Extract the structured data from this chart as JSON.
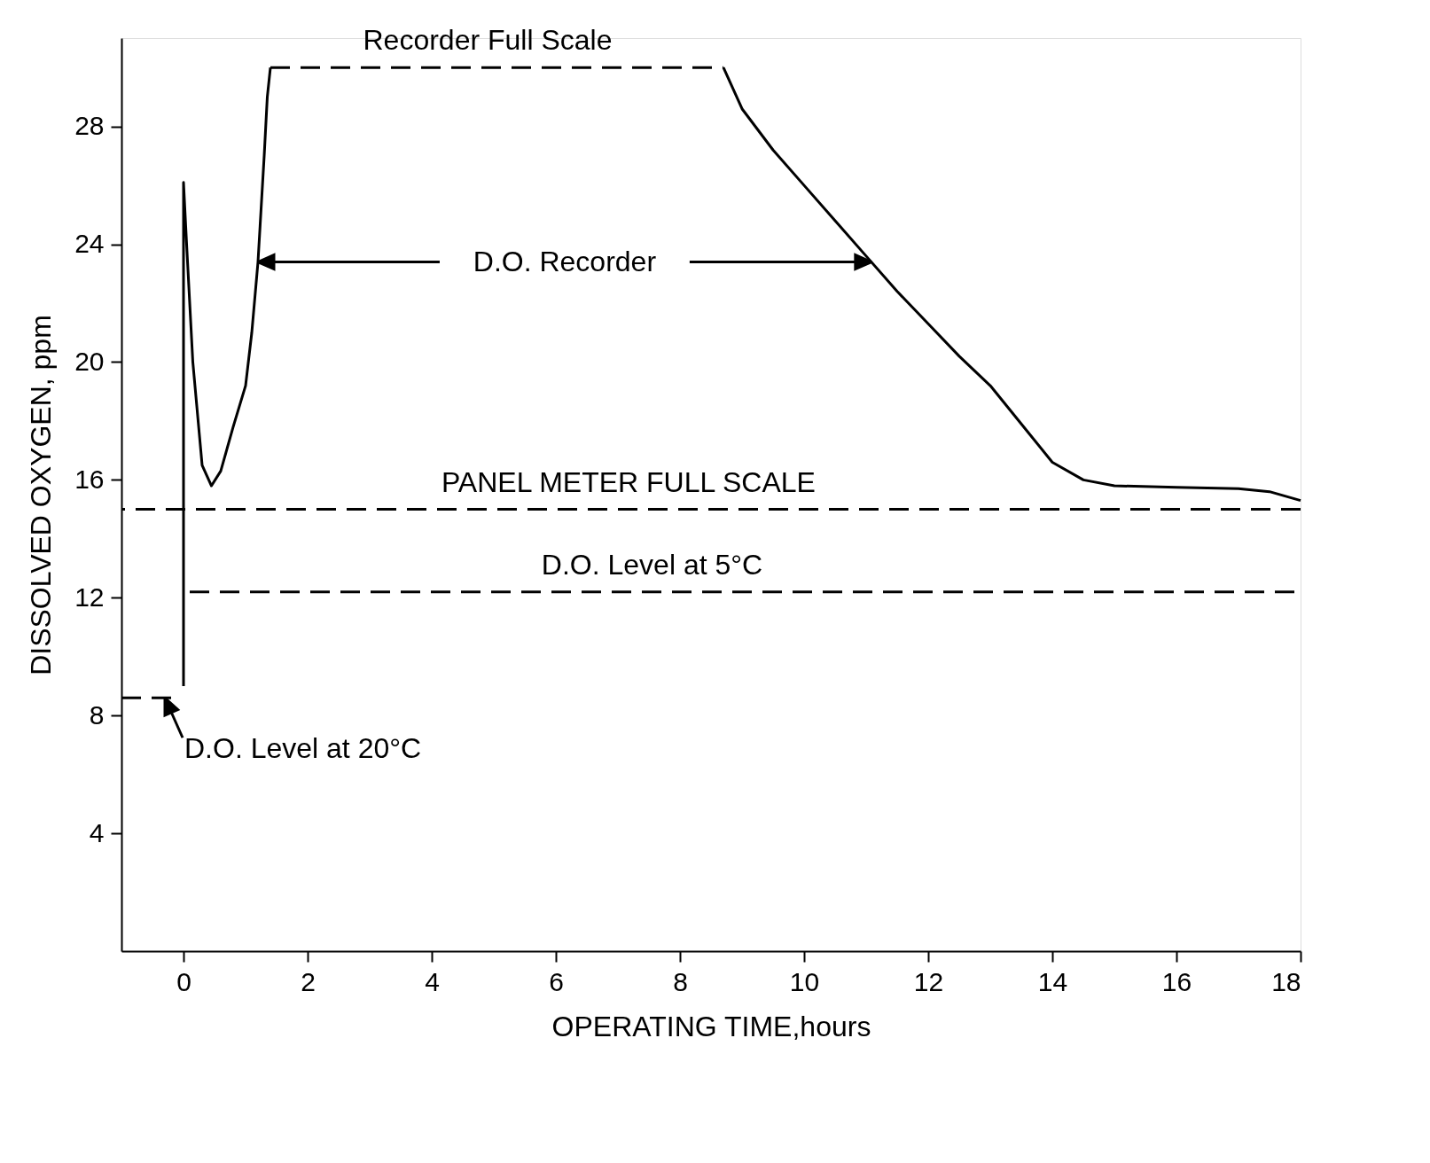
{
  "chart_data": {
    "type": "line",
    "xlabel": "OPERATING TIME,hours",
    "ylabel": "DISSOLVED OXYGEN, ppm",
    "xlim": [
      -1,
      18
    ],
    "xticks": [
      {
        "value": 0,
        "label": "0"
      },
      {
        "value": 2,
        "label": "2"
      },
      {
        "value": 4,
        "label": "4"
      },
      {
        "value": 6,
        "label": "6"
      },
      {
        "value": 8,
        "label": "8"
      },
      {
        "value": 10,
        "label": "10"
      },
      {
        "value": 12,
        "label": "12"
      },
      {
        "value": 14,
        "label": "14"
      },
      {
        "value": 16,
        "label": "16"
      },
      {
        "value": 18,
        "label": "18"
      }
    ],
    "ylim": [
      0,
      31
    ],
    "yticks": [
      4,
      8,
      12,
      16,
      20,
      24,
      28
    ],
    "grid": false,
    "series": [
      {
        "color": "#000000",
        "line_style": "solid",
        "x": [
          0,
          0,
          0.05,
          0.15,
          0.3,
          0.45,
          0.6,
          0.8,
          1.0,
          1.1,
          1.2,
          1.3,
          1.35,
          1.4
        ],
        "values": [
          9.0,
          26.1,
          24,
          20,
          16.5,
          15.8,
          16.3,
          17.8,
          19.2,
          21,
          23.4,
          27,
          29,
          30
        ]
      },
      {
        "color": "#000000",
        "line_style": "dashed",
        "x": [
          1.4,
          8.7
        ],
        "values": [
          30,
          30
        ]
      },
      {
        "color": "#000000",
        "line_style": "solid",
        "x": [
          8.7,
          9,
          9.5,
          10,
          10.5,
          11,
          11.5,
          12,
          12.5,
          13,
          13.5,
          14,
          14.5,
          15,
          16,
          17,
          17.5,
          18
        ],
        "values": [
          30,
          28.6,
          27.2,
          26,
          24.8,
          23.6,
          22.4,
          21.3,
          20.2,
          19.2,
          17.9,
          16.6,
          16,
          15.8,
          15.75,
          15.7,
          15.6,
          15.3
        ]
      },
      {
        "color": "#000000",
        "line_style": "dashed",
        "x": [
          0.1,
          18
        ],
        "values": [
          12.2,
          12.2
        ]
      },
      {
        "color": "#000000",
        "line_style": "dashed",
        "x": [
          -1,
          -0.1
        ],
        "values": [
          8.6,
          8.6
        ]
      }
    ],
    "ref_lines": [
      {
        "axis": "y",
        "value": 15,
        "label": "PANEL METER FULL SCALE",
        "color": "#000000",
        "line_style": "dashed"
      }
    ],
    "annotations": [
      {
        "text": "Recorder Full Scale",
        "x": 4.9,
        "y": 30
      },
      {
        "text": "D.O. Recorder",
        "x": 1.2,
        "y": 23.4
      },
      {
        "text": "D.O. Level at 5°C",
        "x": 7.55,
        "y": 12.2
      },
      {
        "text": "D.O. Level at 20°C",
        "x": -0.3,
        "y": 8.6
      }
    ]
  }
}
